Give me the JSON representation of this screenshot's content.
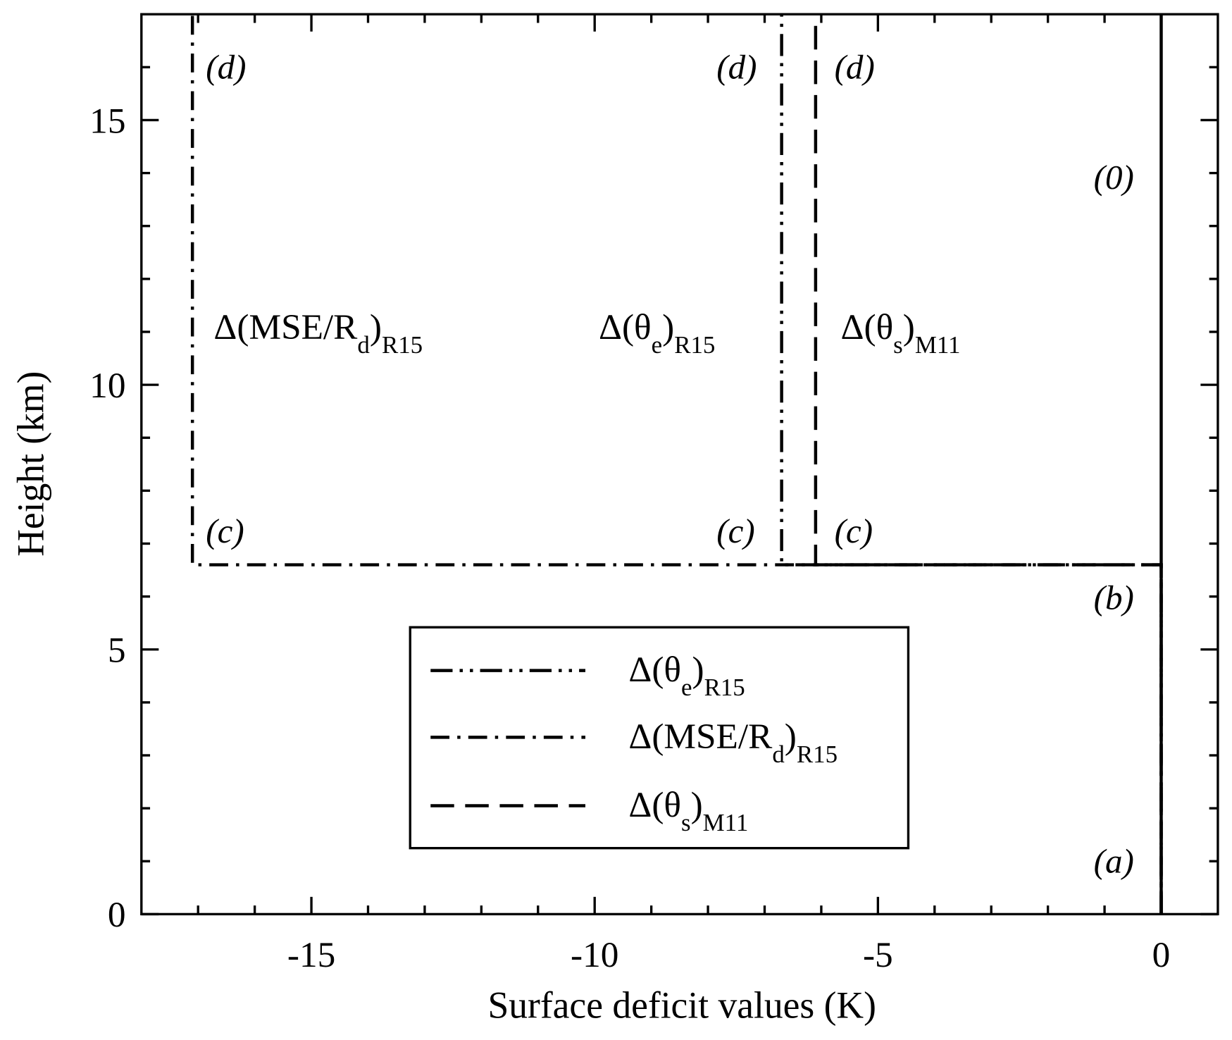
{
  "chart_data": {
    "type": "line",
    "xlabel": "Surface deficit values (K)",
    "ylabel": "Height (km)",
    "xlim": [
      -18,
      1
    ],
    "ylim": [
      0,
      17
    ],
    "xticks": [
      -15,
      -10,
      -5,
      0
    ],
    "yticks": [
      0,
      5,
      10,
      15
    ],
    "xminorticks": [
      -17,
      -16,
      -14,
      -13,
      -12,
      -11,
      -9,
      -8,
      -7,
      -6,
      -4,
      -3,
      -2,
      -1
    ],
    "yminorticks": [
      1,
      2,
      3,
      4,
      6,
      7,
      8,
      9,
      11,
      12,
      13,
      14,
      16
    ],
    "series": [
      {
        "name": [
          {
            "t": "Δ(θ"
          },
          {
            "t": "e",
            "sub": true
          },
          {
            "t": ")"
          },
          {
            "t": "R15",
            "sub": true
          }
        ],
        "color": "#000000",
        "dash": "dash-dot-dot",
        "x": [
          0,
          0,
          -6.7,
          -6.7
        ],
        "values": [
          0,
          6.6,
          6.6,
          17
        ]
      },
      {
        "name": [
          {
            "t": "Δ(MSE/R"
          },
          {
            "t": "d",
            "sub": true
          },
          {
            "t": ")"
          },
          {
            "t": "R15",
            "sub": true
          }
        ],
        "color": "#000000",
        "dash": "dash-dot",
        "x": [
          0,
          0,
          -17.1,
          -17.1
        ],
        "values": [
          0,
          6.6,
          6.6,
          17
        ]
      },
      {
        "name": [
          {
            "t": "Δ(θ"
          },
          {
            "t": "s",
            "sub": true
          },
          {
            "t": ")"
          },
          {
            "t": "M11",
            "sub": true
          }
        ],
        "color": "#000000",
        "dash": "dashed",
        "x": [
          0,
          0,
          -6.1,
          -6.1
        ],
        "values": [
          0,
          6.6,
          6.6,
          17
        ]
      },
      {
        "color": "#000000",
        "dash": "solid",
        "x": [
          0,
          0
        ],
        "values": [
          0,
          17
        ]
      }
    ],
    "annotations": [
      "(d)",
      "(d)",
      "(d)",
      "(c)",
      "(c)",
      "(c)",
      "(0)",
      "(b)",
      "(a)"
    ]
  }
}
